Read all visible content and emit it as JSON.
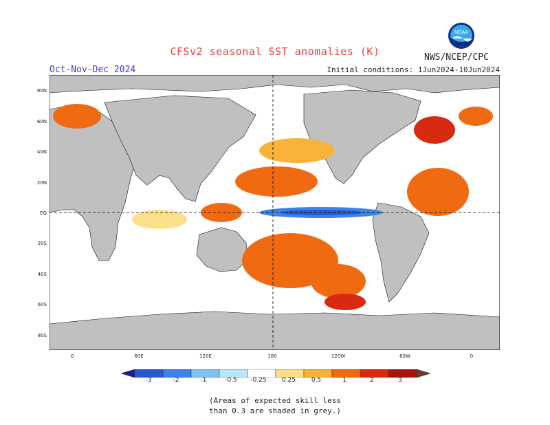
{
  "header": {
    "title": "CFSv2 seasonal SST anomalies (K)",
    "season": "Oct-Nov-Dec 2024",
    "initial_conditions": "Initial conditions: 1Jun2024-10Jun2024",
    "agency": "NWS/NCEP/CPC",
    "logo_text": "NOAA"
  },
  "map": {
    "lat_labels": [
      "80N",
      "60N",
      "40N",
      "20N",
      "EQ",
      "20S",
      "40S",
      "60S",
      "80S"
    ],
    "lon_labels": [
      "0",
      "60E",
      "120E",
      "180",
      "120W",
      "60W",
      "0"
    ],
    "land_color": "#c0c0c0",
    "ocean_color": "#ffffff"
  },
  "colorbar": {
    "labels": [
      "-3",
      "-2",
      "-1",
      "-0.5",
      "-0.25",
      "0.25",
      "0.5",
      "1",
      "2",
      "3"
    ],
    "colors": [
      "#1a1a9c",
      "#2a59d0",
      "#3b83e6",
      "#7cc4f3",
      "#b7e8f7",
      "#ffffff",
      "#fbe08a",
      "#f8b23a",
      "#f06a12",
      "#d82a10",
      "#a8140a",
      "#6e3a2a"
    ]
  },
  "note": {
    "line1": "(Areas of expected skill less",
    "line2": "than 0.3 are shaded in grey.)"
  }
}
